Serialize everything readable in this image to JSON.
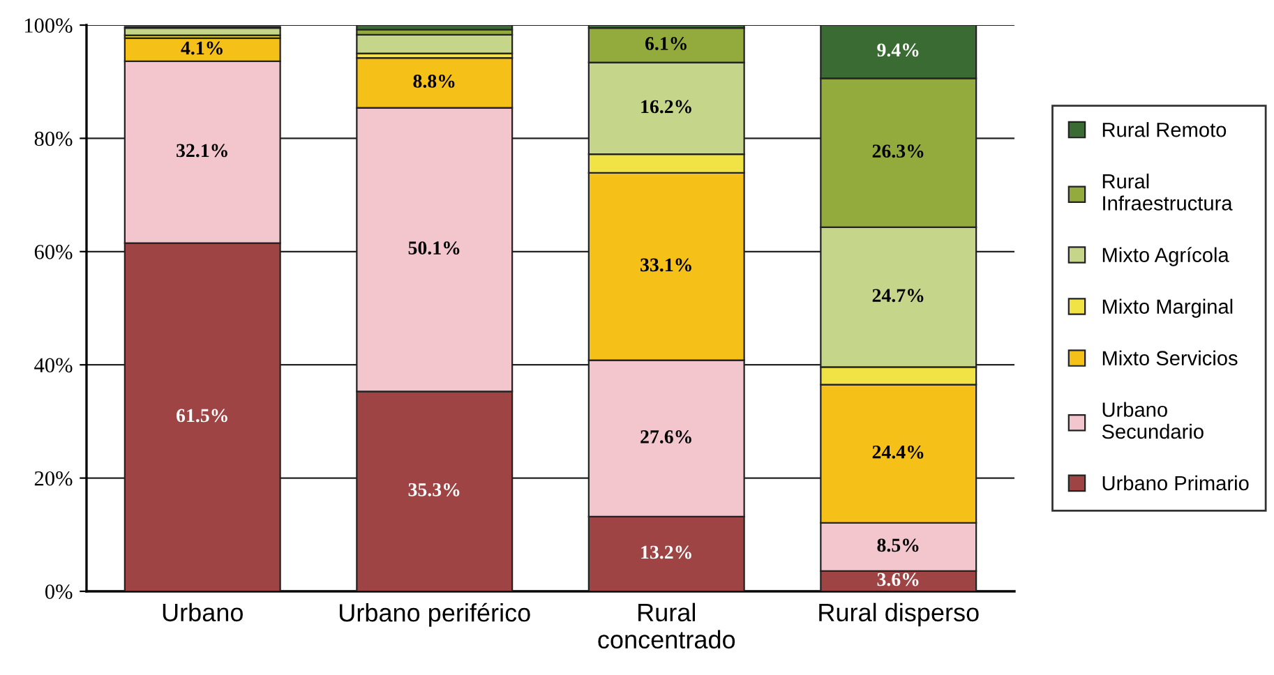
{
  "chart_data": {
    "type": "bar",
    "stacked": true,
    "categories": [
      "Urbano",
      "Urbano periférico",
      "Rural\nconcentrado",
      "Rural disperso"
    ],
    "series": [
      {
        "name": "Urbano Primario",
        "color": "#9e4444",
        "values": [
          61.5,
          35.3,
          13.2,
          3.6
        ],
        "value_labels": [
          "61.5%",
          "35.3%",
          "13.2%",
          "3.6%"
        ]
      },
      {
        "name": "Urbano\nSecundario",
        "color": "#f2c6cc",
        "values": [
          32.1,
          50.1,
          27.6,
          8.5
        ],
        "value_labels": [
          "32.1%",
          "50.1%",
          "27.6%",
          "8.5%"
        ]
      },
      {
        "name": "Mixto Servicios",
        "color": "#f5c118",
        "values": [
          4.1,
          8.8,
          33.1,
          24.4
        ],
        "value_labels": [
          "4.1%",
          "8.8%",
          "33.1%",
          "24.4%"
        ]
      },
      {
        "name": "Mixto Marginal",
        "color": "#f1e245",
        "values": [
          0.5,
          0.8,
          3.3,
          3.1
        ],
        "value_labels": [
          null,
          null,
          null,
          null
        ]
      },
      {
        "name": "Mixto Agrícola",
        "color": "#c5d68a",
        "values": [
          1.3,
          3.3,
          16.2,
          24.7
        ],
        "value_labels": [
          null,
          null,
          "16.2%",
          "24.7%"
        ]
      },
      {
        "name": "Rural\nInfraestructura",
        "color": "#93ab3c",
        "values": [
          null,
          0.9,
          6.1,
          26.3
        ],
        "value_labels": [
          null,
          null,
          "6.1%",
          "26.3%"
        ]
      },
      {
        "name": "Rural Remoto",
        "color": "#3a6b33",
        "values": [
          0.2,
          0.8,
          0.5,
          9.4
        ],
        "value_labels": [
          null,
          null,
          null,
          "9.4%"
        ]
      }
    ],
    "ylim": [
      0,
      100
    ],
    "yticks": [
      {
        "value": 0,
        "label": "0%"
      },
      {
        "value": 20,
        "label": "20%"
      },
      {
        "value": 40,
        "label": "40%"
      },
      {
        "value": 60,
        "label": "60%"
      },
      {
        "value": 80,
        "label": "80%"
      },
      {
        "value": 100,
        "label": "100%"
      }
    ],
    "grid": "y",
    "legend": "right"
  }
}
